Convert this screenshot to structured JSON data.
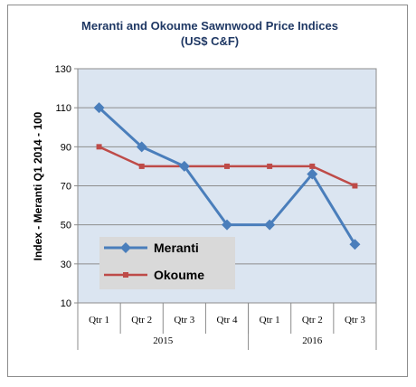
{
  "chart_data": {
    "type": "line",
    "title_line1": "Meranti and Okoume Sawnwood Price Indices",
    "title_line2": "(US$ C&F)",
    "ylabel": "Index - Meranti  Q1 2014 - 100",
    "ylim": [
      10,
      130
    ],
    "yticks": [
      10,
      30,
      50,
      70,
      90,
      110,
      130
    ],
    "grid": true,
    "legend_position": "lower-left",
    "categories": [
      "Qtr 1",
      "Qtr 2",
      "Qtr 3",
      "Qtr 4",
      "Qtr 1",
      "Qtr 2",
      "Qtr 3"
    ],
    "groups": [
      {
        "label": "2015",
        "count": 4
      },
      {
        "label": "2016",
        "count": 3
      }
    ],
    "series": [
      {
        "name": "Meranti",
        "color": "#4a7ebb",
        "marker": "diamond",
        "values": [
          110,
          90,
          80,
          50,
          50,
          76,
          40
        ]
      },
      {
        "name": "Okoume",
        "color": "#be4b48",
        "marker": "square",
        "values": [
          90,
          80,
          80,
          80,
          80,
          80,
          70
        ]
      }
    ]
  }
}
